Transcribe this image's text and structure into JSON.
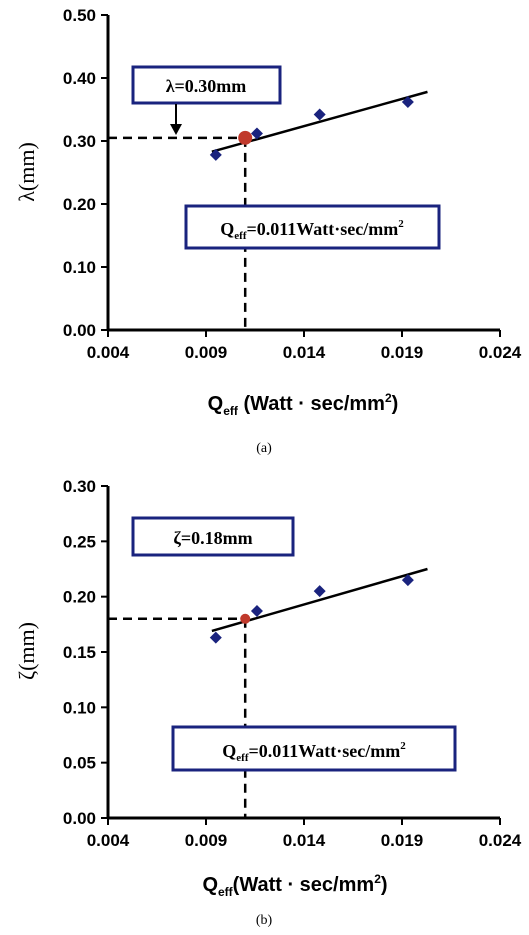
{
  "chart_data": [
    {
      "type": "scatter",
      "panel_caption": "(a)",
      "ylabel": "λ(mm)",
      "xlabel_main": "Q",
      "xlabel_sub": "eff",
      "xlabel_rest": " (Watt · sec/mm",
      "xlabel_sup": "2",
      "xlabel_close": ")",
      "xlim": [
        0.004,
        0.024
      ],
      "ylim": [
        0.0,
        0.5
      ],
      "x_ticks": [
        "0.004",
        "0.009",
        "0.014",
        "0.019",
        "0.024"
      ],
      "y_ticks": [
        "0.00",
        "0.10",
        "0.20",
        "0.30",
        "0.40",
        "0.50"
      ],
      "points": [
        {
          "x": 0.0095,
          "y": 0.278
        },
        {
          "x": 0.0116,
          "y": 0.312
        },
        {
          "x": 0.0148,
          "y": 0.342
        },
        {
          "x": 0.0193,
          "y": 0.362
        }
      ],
      "fit_line": {
        "x": [
          0.0093,
          0.0203
        ],
        "y": [
          0.283,
          0.378
        ]
      },
      "highlight": {
        "x": 0.011,
        "y": 0.305,
        "color": "#c0392b"
      },
      "point_color": "#1a237e",
      "annotation_lambda": {
        "text": "λ=0.30mm"
      },
      "annotation_q": {
        "main": "Q",
        "sub": "eff",
        "rest": "=0.011Watt·sec/mm",
        "sup": "2"
      }
    },
    {
      "type": "scatter",
      "panel_caption": "(b)",
      "ylabel": "ζ(mm)",
      "xlabel_main": "Q",
      "xlabel_sub": "eff",
      "xlabel_rest": "(Watt · sec/mm",
      "xlabel_sup": "2",
      "xlabel_close": ")",
      "xlim": [
        0.004,
        0.024
      ],
      "ylim": [
        0.0,
        0.3
      ],
      "x_ticks": [
        "0.004",
        "0.009",
        "0.014",
        "0.019",
        "0.024"
      ],
      "y_ticks": [
        "0.00",
        "0.05",
        "0.10",
        "0.15",
        "0.20",
        "0.25",
        "0.30"
      ],
      "points": [
        {
          "x": 0.0095,
          "y": 0.163
        },
        {
          "x": 0.0116,
          "y": 0.187
        },
        {
          "x": 0.0148,
          "y": 0.205
        },
        {
          "x": 0.0193,
          "y": 0.215
        }
      ],
      "fit_line": {
        "x": [
          0.0093,
          0.0203
        ],
        "y": [
          0.169,
          0.225
        ]
      },
      "highlight": {
        "x": 0.011,
        "y": 0.18,
        "color": "#c0392b"
      },
      "point_color": "#1a237e",
      "annotation_lambda": {
        "text": "ζ=0.18mm"
      },
      "annotation_q": {
        "main": "Q",
        "sub": "eff",
        "rest": "=0.011Watt·sec/mm",
        "sup": "2"
      }
    }
  ]
}
